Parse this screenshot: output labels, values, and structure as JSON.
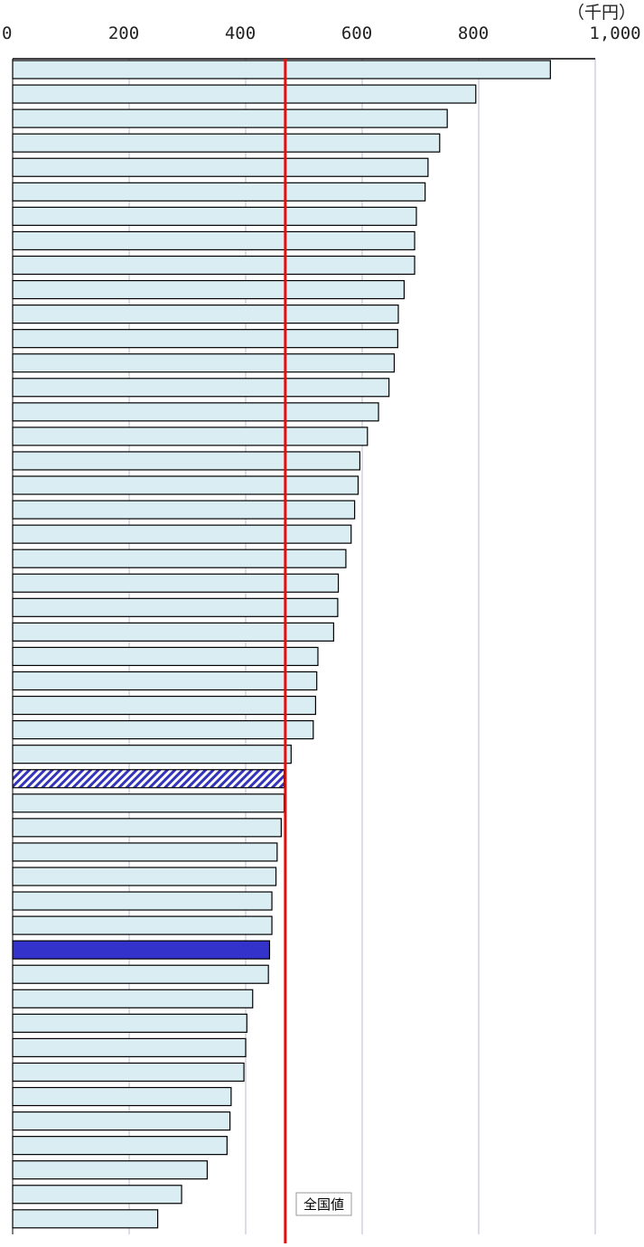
{
  "chart_data": {
    "type": "bar",
    "orientation": "horizontal",
    "unit_label": "（千円）",
    "xlim": [
      0,
      1000
    ],
    "x_ticks": [
      {
        "value": 0,
        "label": "0"
      },
      {
        "value": 200,
        "label": "200"
      },
      {
        "value": 400,
        "label": "400"
      },
      {
        "value": 600,
        "label": "600"
      },
      {
        "value": 800,
        "label": "800"
      },
      {
        "value": 1000,
        "label": "1,000"
      }
    ],
    "grid": true,
    "values": [
      923,
      795,
      746,
      733,
      713,
      708,
      693,
      690,
      690,
      672,
      662,
      661,
      655,
      646,
      628,
      609,
      596,
      593,
      587,
      581,
      572,
      559,
      558,
      551,
      524,
      522,
      520,
      516,
      478,
      466,
      466,
      461,
      454,
      452,
      445,
      445,
      441,
      439,
      412,
      402,
      400,
      397,
      375,
      373,
      368,
      334,
      290,
      249
    ],
    "highlight": [
      {
        "index": 29,
        "style": "hatched",
        "color": "#3333bb"
      },
      {
        "index": 36,
        "style": "solid",
        "color": "#3333cc"
      }
    ],
    "reference_line": {
      "value": 468,
      "label": "全国値",
      "color": "#e01010"
    }
  },
  "colors": {
    "bar_fill": "#daedf3",
    "bar_stroke": "#000000",
    "grid": "#cfd4dc",
    "axis": "#000000"
  }
}
